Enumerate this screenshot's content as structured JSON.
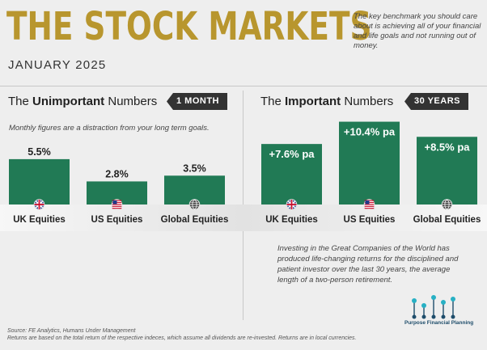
{
  "header": {
    "title": "THE STOCK MARKETS",
    "subtitle": "JANUARY 2025",
    "intro": "The key benchmark you should care about is achieving all of your financial and life goals and not running out of money."
  },
  "sections": {
    "left": {
      "heading_pre": "The ",
      "heading_bold": "Unimportant",
      "heading_post": " Numbers",
      "badge": "1 MONTH"
    },
    "right": {
      "heading_pre": "The ",
      "heading_bold": "Important",
      "heading_post": " Numbers",
      "badge": "30 YEARS"
    }
  },
  "note": "Monthly figures are a distraction from your long term goals.",
  "investing_text": "Investing in the Great Companies of the World has produced life-changing returns for the disciplined and patient investor over the last 30 years, the average length of a two-person retirement.",
  "logo_text": "Purpose Financial Planning",
  "footer": {
    "source": "Source: FE Analytics, Humans Under Management",
    "disclaimer": "Returns are based on the total return of the respective indeces, which assume all dividends are re-invested. Returns are in local currencies."
  },
  "colors": {
    "bar": "#217a55",
    "gold": "#b8962e",
    "label": "#222222"
  },
  "chart_data": [
    {
      "type": "bar",
      "title": "The Unimportant Numbers - 1 Month",
      "categories": [
        "UK Equities",
        "US Equities",
        "Global Equities"
      ],
      "icons": [
        "uk-flag-icon",
        "us-flag-icon",
        "globe-icon"
      ],
      "values": [
        5.5,
        2.8,
        3.5
      ],
      "labels": [
        "5.5%",
        "2.8%",
        "3.5%"
      ],
      "unit": "%"
    },
    {
      "type": "bar",
      "title": "The Important Numbers - 30 Years",
      "categories": [
        "UK Equities",
        "US Equities",
        "Global Equities"
      ],
      "icons": [
        "uk-flag-icon",
        "us-flag-icon",
        "globe-icon"
      ],
      "values": [
        7.6,
        10.4,
        8.5
      ],
      "labels": [
        "+7.6% pa",
        "+10.4% pa",
        "+8.5% pa"
      ],
      "unit": "% pa"
    }
  ]
}
